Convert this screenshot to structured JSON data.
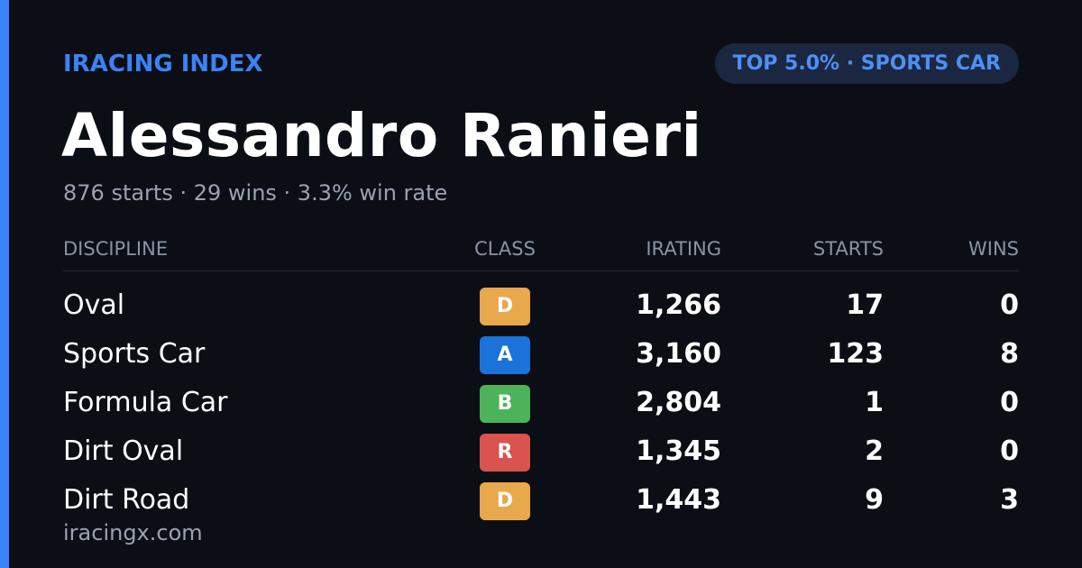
{
  "header": {
    "brand": "IRACING INDEX",
    "badge": "TOP 5.0% · SPORTS CAR"
  },
  "player": {
    "name": "Alessandro Ranieri",
    "summary": "876 starts · 29 wins · 3.3% win rate"
  },
  "table": {
    "headers": [
      "DISCIPLINE",
      "CLASS",
      "IRATING",
      "STARTS",
      "WINS"
    ],
    "rows": [
      {
        "discipline": "Oval",
        "class": "D",
        "class_color": "#e8a84c",
        "irating": "1,266",
        "starts": "17",
        "wins": "0"
      },
      {
        "discipline": "Sports Car",
        "class": "A",
        "class_color": "#1a73d9",
        "irating": "3,160",
        "starts": "123",
        "wins": "8"
      },
      {
        "discipline": "Formula Car",
        "class": "B",
        "class_color": "#4cb35a",
        "irating": "2,804",
        "starts": "1",
        "wins": "0"
      },
      {
        "discipline": "Dirt Oval",
        "class": "R",
        "class_color": "#d9534f",
        "irating": "1,345",
        "starts": "2",
        "wins": "0"
      },
      {
        "discipline": "Dirt Road",
        "class": "D",
        "class_color": "#e8a84c",
        "irating": "1,443",
        "starts": "9",
        "wins": "3"
      }
    ]
  },
  "footer": {
    "url": "iracingx.com"
  }
}
